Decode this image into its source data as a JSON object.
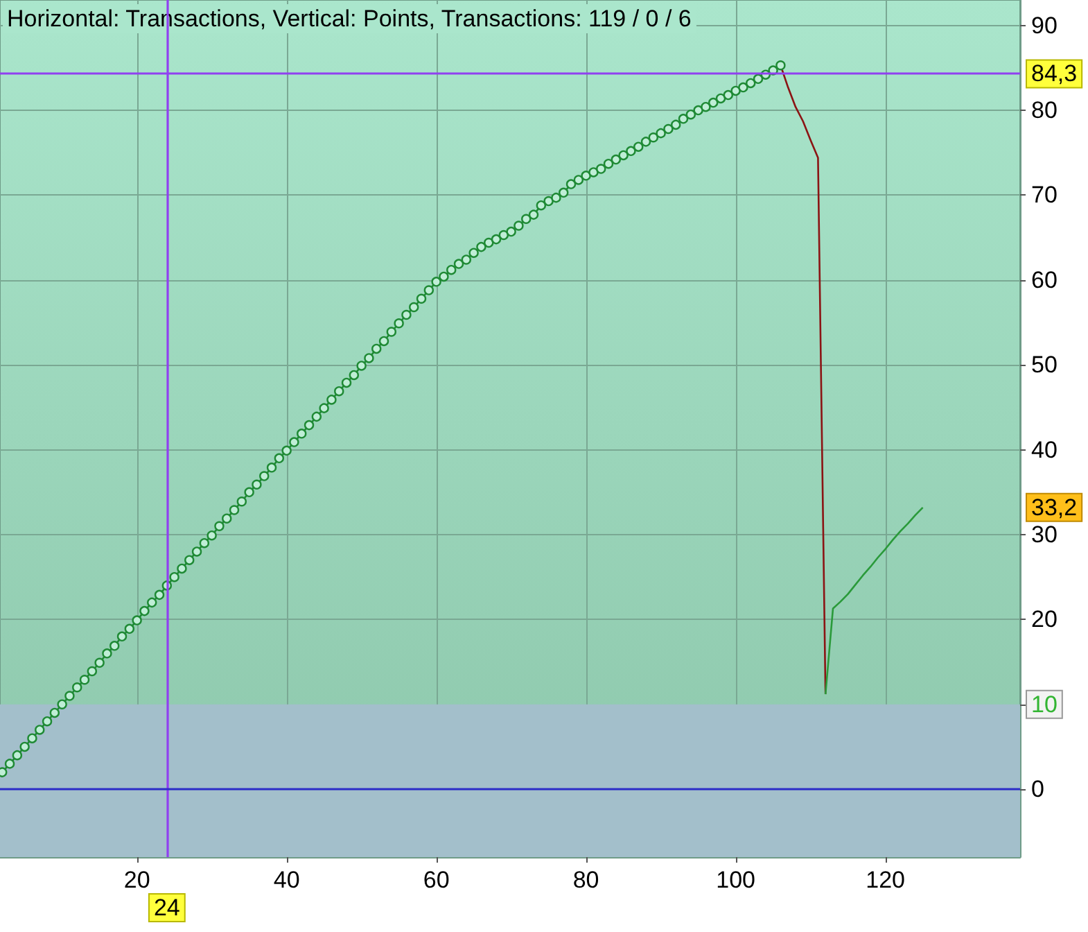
{
  "chart_data": {
    "type": "line",
    "title": "Horizontal: Transactions, Vertical: Points, Transactions: 119 / 0 / 6",
    "xlim": [
      1.7,
      138
    ],
    "xticks": [
      20,
      40,
      60,
      80,
      100,
      120
    ],
    "ylim": [
      -8,
      93
    ],
    "yticks": [
      0,
      {
        "value": 10,
        "label": null
      },
      20,
      30,
      40,
      50,
      60,
      70,
      80,
      90
    ],
    "grid": true,
    "series": [
      {
        "color": "#1f8a35",
        "marker": "circle",
        "x": [
          2,
          3,
          4,
          5,
          6,
          7,
          8,
          9,
          10,
          11,
          12,
          13,
          14,
          15,
          16,
          17,
          18,
          19,
          20,
          21,
          22,
          23,
          24,
          25,
          26,
          27,
          28,
          29,
          30,
          31,
          32,
          33,
          34,
          35,
          36,
          37,
          38,
          39,
          40,
          41,
          42,
          43,
          44,
          45,
          46,
          47,
          48,
          49,
          50,
          51,
          52,
          53,
          54,
          55,
          56,
          57,
          58,
          59,
          60,
          61,
          62,
          63,
          64,
          65,
          66,
          67,
          68,
          69,
          70,
          71,
          72,
          73,
          74,
          75,
          76,
          77,
          78,
          79,
          80,
          81,
          82,
          83,
          84,
          85,
          86,
          87,
          88,
          89,
          90,
          91,
          92,
          93,
          94,
          95,
          96,
          97,
          98,
          99,
          100,
          101,
          102,
          103,
          104,
          105,
          106
        ],
        "values": [
          2.0,
          3.0,
          4.0,
          5.0,
          6.0,
          7.0,
          8.0,
          9.0,
          10.0,
          11.0,
          12.0,
          12.9,
          13.9,
          14.9,
          16.0,
          16.9,
          18.0,
          18.9,
          19.9,
          21.0,
          22.0,
          22.9,
          24.0,
          25.0,
          26.0,
          27.0,
          28.0,
          29.0,
          29.9,
          31.0,
          31.9,
          32.9,
          33.9,
          35.0,
          35.9,
          36.9,
          37.9,
          39.0,
          39.9,
          40.9,
          41.9,
          42.9,
          43.9,
          44.9,
          45.9,
          46.9,
          47.9,
          48.8,
          49.9,
          50.8,
          51.9,
          52.8,
          53.9,
          54.9,
          55.9,
          56.8,
          57.8,
          58.8,
          59.8,
          60.4,
          61.2,
          61.9,
          62.4,
          63.2,
          63.9,
          64.4,
          64.8,
          65.3,
          65.7,
          66.4,
          67.2,
          67.7,
          68.8,
          69.3,
          69.7,
          70.3,
          71.3,
          71.8,
          72.3,
          72.7,
          73.1,
          73.7,
          74.2,
          74.7,
          75.2,
          75.7,
          76.3,
          76.8,
          77.3,
          77.8,
          78.3,
          79.0,
          79.5,
          80.0,
          80.4,
          80.9,
          81.4,
          81.8,
          82.3,
          82.7,
          83.2,
          83.7,
          84.2,
          84.7,
          85.3
        ]
      },
      {
        "color": "#8b1414",
        "marker": "none",
        "x": [
          106,
          107,
          108,
          109,
          110,
          111,
          112
        ],
        "values": [
          85.3,
          82.7,
          80.4,
          78.7,
          76.5,
          74.4,
          11.2
        ]
      },
      {
        "color": "#2a9a3a",
        "marker": "none",
        "x": [
          112,
          113,
          114,
          115,
          116,
          117,
          118,
          119,
          120,
          121,
          122,
          123,
          124,
          125
        ],
        "values": [
          11.2,
          21.3,
          22.1,
          23.0,
          24.1,
          25.2,
          26.2,
          27.3,
          28.3,
          29.4,
          30.4,
          31.3,
          32.3,
          33.2
        ]
      }
    ],
    "ref_lines": [
      {
        "axis": "x",
        "value": 24,
        "label": "24",
        "color": "#9040f0"
      },
      {
        "axis": "y",
        "value": 84.3,
        "label": "84,3",
        "color": "#9040f0"
      },
      {
        "axis": "y",
        "value": 0,
        "color": "#2c2cc8"
      }
    ],
    "bands": [
      {
        "axis": "y",
        "from": -8,
        "to": 10,
        "label": "10",
        "color": "#a3bfcb"
      }
    ],
    "annotations": [
      "33,2"
    ]
  }
}
